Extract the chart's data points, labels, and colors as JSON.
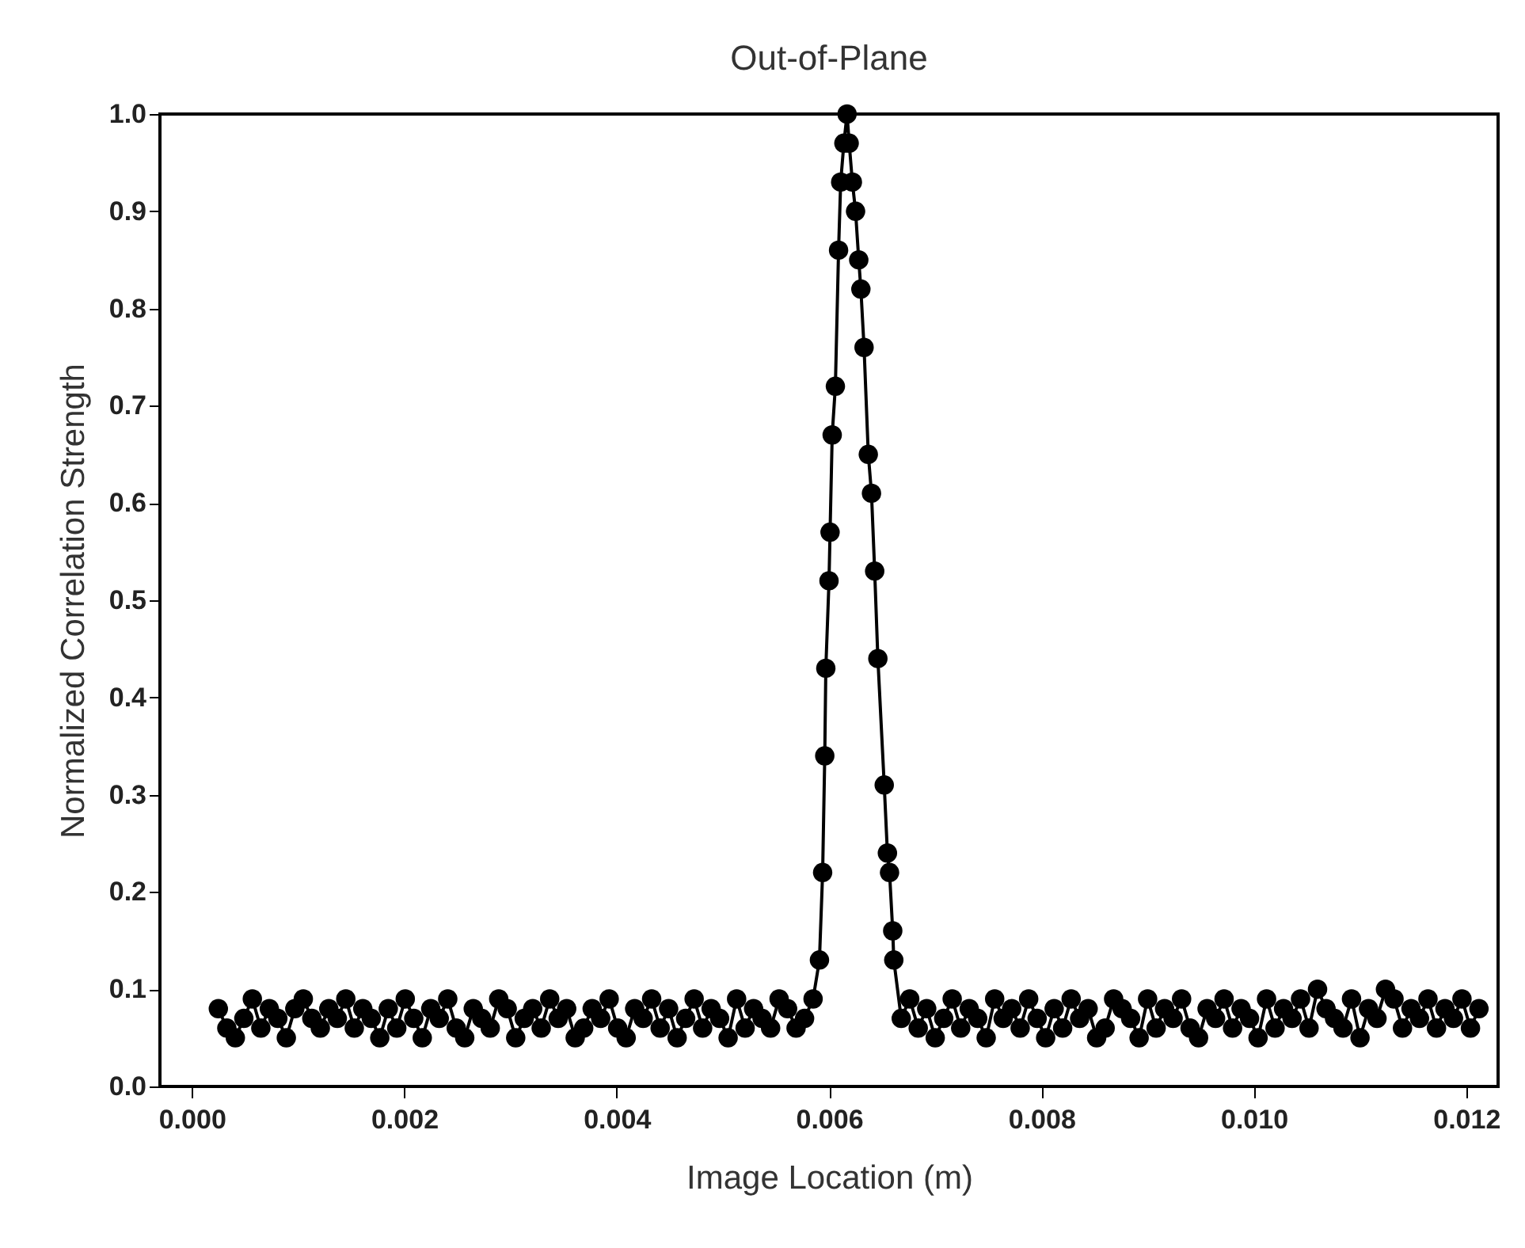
{
  "chart_data": {
    "type": "line",
    "title": "Out-of-Plane",
    "xlabel": "Image Location (m)",
    "ylabel": "Normalized Correlation Strength",
    "xlim": [
      -0.0003,
      0.0123
    ],
    "ylim": [
      0,
      1.0
    ],
    "xticks": [
      {
        "value": 0,
        "label": "0.000"
      },
      {
        "value": 0.002,
        "label": "0.002"
      },
      {
        "value": 0.004,
        "label": "0.004"
      },
      {
        "value": 0.006,
        "label": "0.006"
      },
      {
        "value": 0.008,
        "label": "0.008"
      },
      {
        "value": 0.01,
        "label": "0.010"
      },
      {
        "value": 0.012,
        "label": "0.012"
      }
    ],
    "yticks": [
      {
        "value": 0,
        "label": "0.0"
      },
      0.1,
      0.2,
      0.3,
      0.4,
      0.5,
      0.6,
      0.7,
      0.8,
      0.9,
      {
        "value": 1,
        "label": "1.0"
      }
    ],
    "grid": false,
    "marker": "circle",
    "line_style": "solid",
    "series": [
      {
        "color": "#000000",
        "x": [
          0.00025,
          0.00033,
          0.00041,
          0.00049,
          0.00057,
          0.00065,
          0.00073,
          0.00081,
          0.00089,
          0.00097,
          0.00105,
          0.00113,
          0.00121,
          0.00129,
          0.00137,
          0.00145,
          0.00153,
          0.00161,
          0.00169,
          0.00177,
          0.00185,
          0.00193,
          0.00201,
          0.00209,
          0.00217,
          0.00225,
          0.00233,
          0.00241,
          0.00249,
          0.00257,
          0.00265,
          0.00273,
          0.00281,
          0.00289,
          0.00297,
          0.00305,
          0.00313,
          0.00321,
          0.00329,
          0.00337,
          0.00345,
          0.00353,
          0.00361,
          0.00369,
          0.00377,
          0.00385,
          0.00393,
          0.00401,
          0.00409,
          0.00417,
          0.00425,
          0.00433,
          0.00441,
          0.00449,
          0.00457,
          0.00465,
          0.00473,
          0.00481,
          0.00489,
          0.00497,
          0.00505,
          0.00513,
          0.00521,
          0.00529,
          0.00537,
          0.00545,
          0.00553,
          0.00561,
          0.00569,
          0.00577,
          0.00585,
          0.00591,
          0.00594,
          0.00596,
          0.00597,
          0.006,
          0.00601,
          0.00603,
          0.00606,
          0.00609,
          0.00611,
          0.00614,
          0.00617,
          0.00619,
          0.00622,
          0.00625,
          0.00628,
          0.0063,
          0.00633,
          0.00637,
          0.0064,
          0.00643,
          0.00646,
          0.00652,
          0.00655,
          0.00657,
          0.0066,
          0.00661,
          0.00668,
          0.00676,
          0.00684,
          0.00692,
          0.007,
          0.00708,
          0.00716,
          0.00724,
          0.00732,
          0.0074,
          0.00748,
          0.00756,
          0.00764,
          0.00772,
          0.0078,
          0.00788,
          0.00796,
          0.00804,
          0.00812,
          0.0082,
          0.00828,
          0.00836,
          0.00844,
          0.00852,
          0.0086,
          0.00868,
          0.00876,
          0.00884,
          0.00892,
          0.009,
          0.00908,
          0.00916,
          0.00924,
          0.00932,
          0.0094,
          0.00948,
          0.00956,
          0.00964,
          0.00972,
          0.0098,
          0.00988,
          0.00996,
          0.01004,
          0.01012,
          0.0102,
          0.01028,
          0.01036,
          0.01044,
          0.01052,
          0.0106,
          0.01068,
          0.01076,
          0.01084,
          0.01092,
          0.011,
          0.01108,
          0.01116,
          0.01124,
          0.01132,
          0.0114,
          0.01148,
          0.01156,
          0.01164,
          0.01172,
          0.0118,
          0.01188,
          0.01196,
          0.01204,
          0.01212
        ],
        "values": [
          0.08,
          0.06,
          0.05,
          0.07,
          0.09,
          0.06,
          0.08,
          0.07,
          0.05,
          0.08,
          0.09,
          0.07,
          0.06,
          0.08,
          0.07,
          0.09,
          0.06,
          0.08,
          0.07,
          0.05,
          0.08,
          0.06,
          0.09,
          0.07,
          0.05,
          0.08,
          0.07,
          0.09,
          0.06,
          0.05,
          0.08,
          0.07,
          0.06,
          0.09,
          0.08,
          0.05,
          0.07,
          0.08,
          0.06,
          0.09,
          0.07,
          0.08,
          0.05,
          0.06,
          0.08,
          0.07,
          0.09,
          0.06,
          0.05,
          0.08,
          0.07,
          0.09,
          0.06,
          0.08,
          0.05,
          0.07,
          0.09,
          0.06,
          0.08,
          0.07,
          0.05,
          0.09,
          0.06,
          0.08,
          0.07,
          0.06,
          0.09,
          0.08,
          0.06,
          0.07,
          0.09,
          0.13,
          0.22,
          0.34,
          0.43,
          0.52,
          0.57,
          0.67,
          0.72,
          0.86,
          0.93,
          0.97,
          1.0,
          0.97,
          0.93,
          0.9,
          0.85,
          0.82,
          0.76,
          0.65,
          0.61,
          0.53,
          0.44,
          0.31,
          0.24,
          0.22,
          0.16,
          0.13,
          0.07,
          0.09,
          0.06,
          0.08,
          0.05,
          0.07,
          0.09,
          0.06,
          0.08,
          0.07,
          0.05,
          0.09,
          0.07,
          0.08,
          0.06,
          0.09,
          0.07,
          0.05,
          0.08,
          0.06,
          0.09,
          0.07,
          0.08,
          0.05,
          0.06,
          0.09,
          0.08,
          0.07,
          0.05,
          0.09,
          0.06,
          0.08,
          0.07,
          0.09,
          0.06,
          0.05,
          0.08,
          0.07,
          0.09,
          0.06,
          0.08,
          0.07,
          0.05,
          0.09,
          0.06,
          0.08,
          0.07,
          0.09,
          0.06,
          0.1,
          0.08,
          0.07,
          0.06,
          0.09,
          0.05,
          0.08,
          0.07,
          0.1,
          0.09,
          0.06,
          0.08,
          0.07,
          0.09,
          0.06,
          0.08,
          0.07,
          0.09,
          0.06,
          0.08
        ]
      }
    ]
  }
}
